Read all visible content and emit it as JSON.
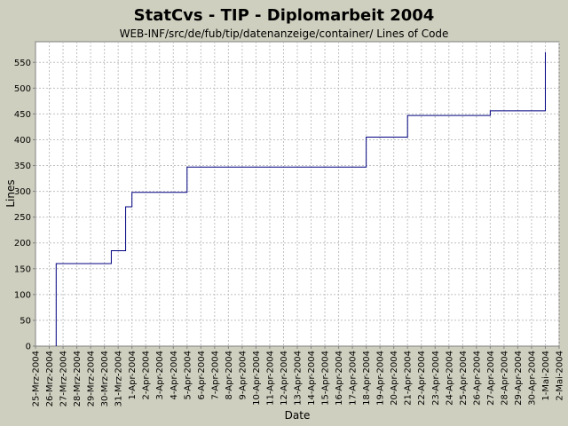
{
  "chart_data": {
    "type": "line",
    "line_style": "step",
    "title": "StatCvs - TIP - Diplomarbeit 2004",
    "subtitle": "WEB-INF/src/de/fub/tip/datenanzeige/container/ Lines of Code",
    "xlabel": "Date",
    "ylabel": "Lines",
    "ylim": [
      0,
      590
    ],
    "yticks": [
      0,
      50,
      100,
      150,
      200,
      250,
      300,
      350,
      400,
      450,
      500,
      550
    ],
    "xlim": [
      "2004-03-25",
      "2004-05-02"
    ],
    "grid": true,
    "series_color": "#000080",
    "xtick_labels": [
      "25-Mrz-2004",
      "26-Mrz-2004",
      "27-Mrz-2004",
      "28-Mrz-2004",
      "29-Mrz-2004",
      "30-Mrz-2004",
      "31-Mrz-2004",
      "1-Apr-2004",
      "2-Apr-2004",
      "3-Apr-2004",
      "4-Apr-2004",
      "5-Apr-2004",
      "6-Apr-2004",
      "7-Apr-2004",
      "8-Apr-2004",
      "9-Apr-2004",
      "10-Apr-2004",
      "11-Apr-2004",
      "12-Apr-2004",
      "13-Apr-2004",
      "14-Apr-2004",
      "15-Apr-2004",
      "16-Apr-2004",
      "17-Apr-2004",
      "18-Apr-2004",
      "19-Apr-2004",
      "20-Apr-2004",
      "21-Apr-2004",
      "22-Apr-2004",
      "23-Apr-2004",
      "24-Apr-2004",
      "25-Apr-2004",
      "26-Apr-2004",
      "27-Apr-2004",
      "28-Apr-2004",
      "29-Apr-2004",
      "30-Apr-2004",
      "1-Mai-2004",
      "2-Mai-2004"
    ],
    "series": [
      {
        "x": [
          "2004-03-26 12:00",
          "2004-03-26 12:00",
          "2004-03-30 12:00",
          "2004-03-31 13:00",
          "2004-04-01 00:00",
          "2004-04-05 00:00",
          "2004-04-18 00:00",
          "2004-04-21 00:00",
          "2004-04-27 00:00",
          "2004-05-01 00:00",
          "2004-05-01 00:00"
        ],
        "y": [
          0,
          160,
          185,
          270,
          298,
          347,
          405,
          447,
          456,
          457,
          570
        ]
      }
    ]
  }
}
